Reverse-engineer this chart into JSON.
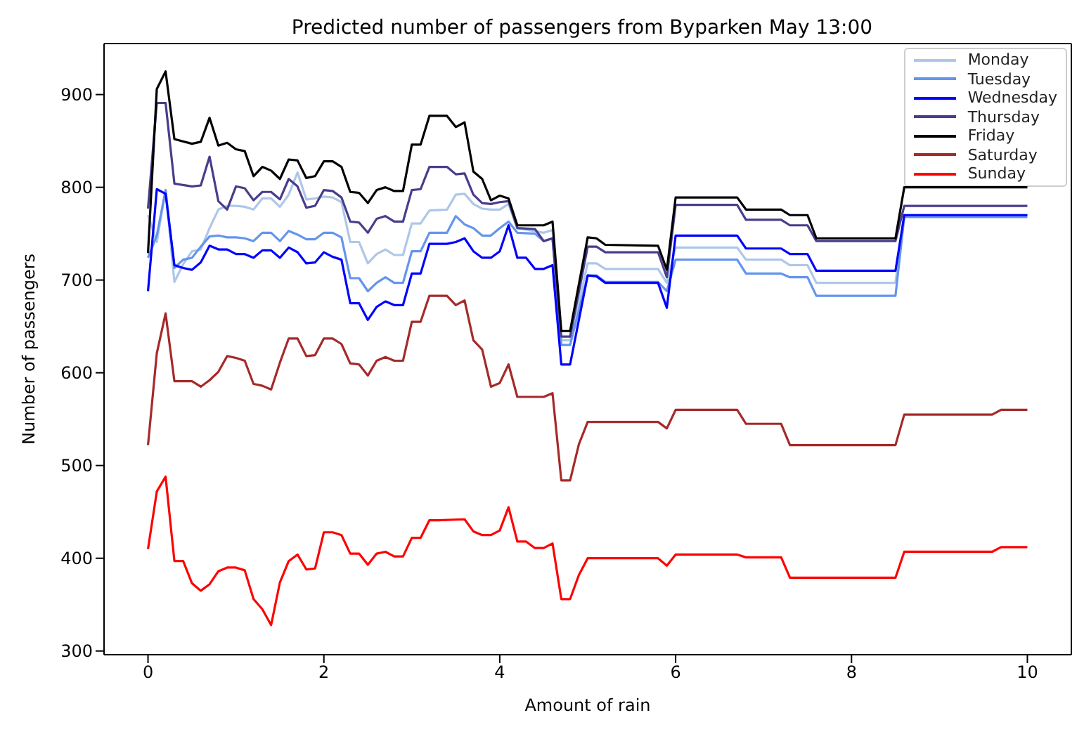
{
  "chart_data": {
    "type": "line",
    "title": "Predicted number of passengers from Byparken May 13:00",
    "xlabel": "Amount of rain",
    "ylabel": "Number of passengers",
    "xlim": [
      -0.5,
      10.5
    ],
    "xticks": [
      0,
      2,
      4,
      6,
      8,
      10
    ],
    "ylim": [
      296,
      955
    ],
    "yticks": [
      300,
      400,
      500,
      600,
      700,
      800,
      900
    ],
    "legend": "top right",
    "series": [
      {
        "name": "Monday",
        "color": "#aec7e8",
        "x": [
          0,
          0.1,
          0.2,
          0.3,
          0.4,
          0.5,
          0.6,
          0.7,
          0.8,
          0.9,
          1.0,
          1.1,
          1.2,
          1.3,
          1.4,
          1.5,
          1.6,
          1.7,
          1.8,
          1.9,
          2.0,
          2.1,
          2.2,
          2.3,
          2.4,
          2.5,
          2.6,
          2.7,
          2.8,
          2.9,
          3.0,
          3.1,
          3.2,
          3.4,
          3.5,
          3.6,
          3.7,
          3.8,
          3.9,
          4.0,
          4.1,
          4.2,
          4.5,
          4.6,
          4.7,
          4.8,
          5.0,
          5.1,
          5.2,
          5.8,
          5.9,
          6.0,
          6.7,
          6.8,
          7.2,
          7.3,
          7.5,
          7.6,
          8.5,
          8.6,
          10
        ],
        "values": [
          770,
          741,
          797,
          698,
          717,
          731,
          733,
          756,
          776,
          780,
          780,
          779,
          776,
          788,
          788,
          779,
          792,
          816,
          787,
          788,
          790,
          789,
          784,
          741,
          741,
          718,
          728,
          733,
          727,
          727,
          761,
          761,
          775,
          776,
          792,
          793,
          782,
          777,
          776,
          776,
          782,
          756,
          751,
          754,
          635,
          635,
          718,
          718,
          712,
          712,
          697,
          735,
          735,
          722,
          722,
          716,
          716,
          697,
          697,
          770,
          770
        ]
      },
      {
        "name": "Tuesday",
        "color": "#6495ed",
        "x": [
          0,
          0.1,
          0.2,
          0.3,
          0.4,
          0.5,
          0.6,
          0.7,
          0.8,
          0.9,
          1.0,
          1.1,
          1.2,
          1.3,
          1.4,
          1.5,
          1.6,
          1.7,
          1.8,
          1.9,
          2.0,
          2.1,
          2.2,
          2.3,
          2.4,
          2.5,
          2.6,
          2.7,
          2.8,
          2.9,
          3.0,
          3.1,
          3.2,
          3.4,
          3.5,
          3.6,
          3.7,
          3.8,
          3.9,
          4.0,
          4.1,
          4.2,
          4.4,
          4.5,
          4.6,
          4.7,
          4.8,
          5.0,
          5.1,
          5.2,
          5.8,
          5.9,
          6.0,
          6.7,
          6.8,
          7.2,
          7.3,
          7.5,
          7.6,
          8.5,
          8.6,
          10
        ],
        "values": [
          724,
          748,
          797,
          713,
          722,
          724,
          736,
          747,
          748,
          746,
          746,
          745,
          742,
          751,
          751,
          742,
          753,
          749,
          744,
          744,
          751,
          751,
          746,
          702,
          702,
          688,
          697,
          703,
          697,
          697,
          731,
          731,
          751,
          751,
          769,
          760,
          756,
          748,
          748,
          756,
          763,
          751,
          750,
          742,
          745,
          630,
          630,
          705,
          705,
          698,
          698,
          688,
          722,
          722,
          707,
          707,
          703,
          703,
          683,
          683,
          768,
          768
        ]
      },
      {
        "name": "Wednesday",
        "color": "#0000ff",
        "x": [
          0,
          0.1,
          0.2,
          0.3,
          0.4,
          0.5,
          0.6,
          0.7,
          0.8,
          0.9,
          1.0,
          1.1,
          1.2,
          1.3,
          1.4,
          1.5,
          1.6,
          1.7,
          1.8,
          1.9,
          2.0,
          2.1,
          2.2,
          2.3,
          2.4,
          2.5,
          2.6,
          2.7,
          2.8,
          2.9,
          3.0,
          3.1,
          3.2,
          3.4,
          3.5,
          3.6,
          3.7,
          3.8,
          3.9,
          4.0,
          4.1,
          4.2,
          4.3,
          4.4,
          4.5,
          4.6,
          4.7,
          4.8,
          5.0,
          5.1,
          5.2,
          5.8,
          5.9,
          6.0,
          6.7,
          6.8,
          7.2,
          7.3,
          7.5,
          7.6,
          8.5,
          8.6,
          10
        ],
        "values": [
          688,
          798,
          793,
          716,
          713,
          711,
          719,
          737,
          733,
          733,
          728,
          728,
          724,
          732,
          732,
          724,
          735,
          730,
          718,
          719,
          730,
          725,
          722,
          675,
          675,
          657,
          671,
          677,
          673,
          673,
          707,
          707,
          739,
          739,
          741,
          745,
          731,
          724,
          724,
          731,
          759,
          724,
          724,
          712,
          712,
          716,
          609,
          609,
          705,
          704,
          697,
          697,
          670,
          748,
          748,
          734,
          734,
          728,
          728,
          710,
          710,
          770,
          770
        ]
      },
      {
        "name": "Thursday",
        "color": "#483d8b",
        "x": [
          0,
          0.1,
          0.2,
          0.3,
          0.5,
          0.6,
          0.7,
          0.8,
          0.9,
          1.0,
          1.1,
          1.2,
          1.3,
          1.4,
          1.5,
          1.6,
          1.7,
          1.8,
          1.9,
          2.0,
          2.1,
          2.2,
          2.3,
          2.4,
          2.5,
          2.6,
          2.7,
          2.8,
          2.9,
          3.0,
          3.1,
          3.2,
          3.4,
          3.5,
          3.6,
          3.7,
          3.8,
          3.9,
          4.0,
          4.1,
          4.2,
          4.4,
          4.5,
          4.6,
          4.7,
          4.8,
          5.0,
          5.1,
          5.2,
          5.8,
          5.9,
          6.0,
          6.7,
          6.8,
          7.2,
          7.3,
          7.5,
          7.6,
          8.5,
          8.6,
          10
        ],
        "values": [
          777,
          891,
          891,
          804,
          801,
          802,
          833,
          785,
          776,
          801,
          799,
          786,
          795,
          795,
          787,
          809,
          801,
          778,
          780,
          797,
          796,
          789,
          763,
          762,
          751,
          766,
          769,
          763,
          763,
          797,
          798,
          822,
          822,
          814,
          815,
          792,
          783,
          782,
          784,
          785,
          756,
          755,
          742,
          745,
          639,
          639,
          736,
          736,
          730,
          730,
          703,
          781,
          781,
          765,
          765,
          759,
          759,
          742,
          742,
          780,
          780
        ]
      },
      {
        "name": "Friday",
        "color": "#000000",
        "x": [
          0,
          0.1,
          0.2,
          0.3,
          0.5,
          0.6,
          0.7,
          0.8,
          0.9,
          1.0,
          1.1,
          1.2,
          1.3,
          1.4,
          1.5,
          1.6,
          1.7,
          1.8,
          1.9,
          2.0,
          2.1,
          2.2,
          2.3,
          2.4,
          2.5,
          2.6,
          2.7,
          2.8,
          2.9,
          3.0,
          3.1,
          3.2,
          3.4,
          3.5,
          3.6,
          3.7,
          3.8,
          3.9,
          4.0,
          4.1,
          4.2,
          4.5,
          4.6,
          4.7,
          4.8,
          5.0,
          5.1,
          5.2,
          5.8,
          5.9,
          6.0,
          6.7,
          6.8,
          7.2,
          7.3,
          7.5,
          7.6,
          8.5,
          8.6,
          10
        ],
        "values": [
          729,
          906,
          925,
          852,
          847,
          849,
          875,
          845,
          848,
          841,
          839,
          812,
          822,
          818,
          809,
          830,
          829,
          810,
          812,
          828,
          828,
          822,
          795,
          794,
          783,
          797,
          800,
          796,
          796,
          846,
          846,
          877,
          877,
          865,
          870,
          817,
          809,
          786,
          791,
          788,
          759,
          759,
          763,
          645,
          645,
          746,
          745,
          738,
          737,
          711,
          789,
          789,
          776,
          776,
          770,
          770,
          745,
          745,
          800,
          800
        ]
      },
      {
        "name": "Saturday",
        "color": "#a52a2a",
        "x": [
          0,
          0.1,
          0.2,
          0.3,
          0.5,
          0.6,
          0.7,
          0.8,
          0.9,
          1.0,
          1.1,
          1.2,
          1.3,
          1.4,
          1.5,
          1.6,
          1.7,
          1.8,
          1.9,
          2.0,
          2.1,
          2.2,
          2.3,
          2.4,
          2.5,
          2.6,
          2.7,
          2.8,
          2.9,
          3.0,
          3.1,
          3.2,
          3.4,
          3.5,
          3.6,
          3.7,
          3.8,
          3.9,
          4.0,
          4.1,
          4.2,
          4.5,
          4.6,
          4.7,
          4.8,
          4.9,
          5.0,
          5.8,
          5.9,
          6.0,
          6.7,
          6.8,
          7.2,
          7.3,
          8.5,
          8.6,
          9.6,
          9.7,
          10
        ],
        "values": [
          522,
          621,
          664,
          591,
          591,
          585,
          592,
          601,
          618,
          616,
          613,
          588,
          586,
          582,
          611,
          637,
          637,
          618,
          619,
          637,
          637,
          631,
          610,
          609,
          597,
          613,
          617,
          613,
          613,
          655,
          655,
          683,
          683,
          673,
          678,
          635,
          625,
          585,
          589,
          609,
          574,
          574,
          578,
          484,
          484,
          523,
          547,
          547,
          540,
          560,
          560,
          545,
          545,
          522,
          522,
          555,
          555,
          560,
          560
        ]
      },
      {
        "name": "Sunday",
        "color": "#ff0000",
        "x": [
          0,
          0.1,
          0.2,
          0.3,
          0.4,
          0.5,
          0.6,
          0.7,
          0.8,
          0.9,
          1.0,
          1.1,
          1.2,
          1.3,
          1.4,
          1.5,
          1.6,
          1.7,
          1.8,
          1.9,
          2.0,
          2.1,
          2.2,
          2.3,
          2.4,
          2.5,
          2.6,
          2.7,
          2.8,
          2.9,
          3.0,
          3.1,
          3.2,
          3.3,
          3.6,
          3.7,
          3.8,
          3.9,
          4.0,
          4.1,
          4.2,
          4.3,
          4.4,
          4.5,
          4.6,
          4.7,
          4.8,
          4.9,
          5.0,
          5.8,
          5.9,
          6.0,
          6.7,
          6.8,
          7.2,
          7.3,
          8.5,
          8.6,
          9.6,
          9.7,
          10
        ],
        "values": [
          410,
          472,
          488,
          397,
          397,
          373,
          365,
          372,
          386,
          390,
          390,
          387,
          356,
          345,
          328,
          374,
          397,
          404,
          388,
          389,
          428,
          428,
          425,
          405,
          405,
          393,
          405,
          407,
          402,
          402,
          422,
          422,
          441,
          441,
          442,
          429,
          425,
          425,
          430,
          455,
          418,
          418,
          411,
          411,
          416,
          356,
          356,
          382,
          400,
          400,
          392,
          404,
          404,
          401,
          401,
          379,
          379,
          407,
          407,
          412,
          412
        ]
      }
    ]
  }
}
